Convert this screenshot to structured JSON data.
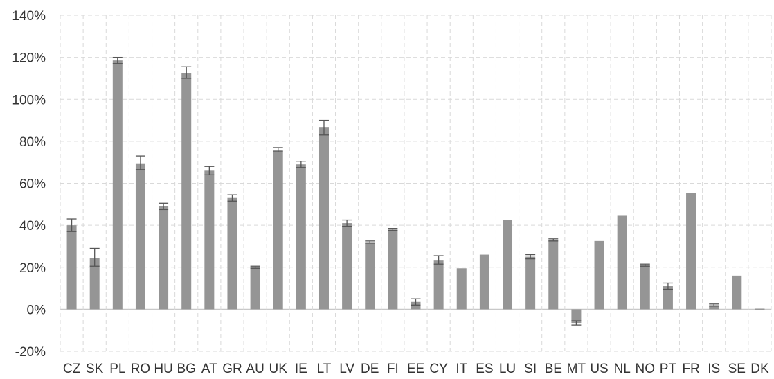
{
  "chart_data": {
    "type": "bar",
    "title": "",
    "xlabel": "",
    "ylabel": "",
    "ylim": [
      -20,
      140
    ],
    "yticks": [
      -20,
      0,
      20,
      40,
      60,
      80,
      100,
      120,
      140
    ],
    "ytick_labels": [
      "-20%",
      "0%",
      "20%",
      "40%",
      "60%",
      "80%",
      "100%",
      "120%",
      "140%"
    ],
    "grid": true,
    "legend": "none",
    "bar_color": "#959595",
    "categories": [
      "CZ",
      "SK",
      "PL",
      "RO",
      "HU",
      "BG",
      "AT",
      "GR",
      "AU",
      "UK",
      "IE",
      "LT",
      "LV",
      "DE",
      "FI",
      "EE",
      "CY",
      "IT",
      "ES",
      "LU",
      "SI",
      "BE",
      "MT",
      "US",
      "NL",
      "NO",
      "PT",
      "FR",
      "IS",
      "SE",
      "DK"
    ],
    "values": [
      40,
      24.5,
      118.5,
      69.5,
      49,
      112.5,
      66,
      53,
      20,
      76,
      69,
      86.5,
      41,
      32,
      38,
      3.5,
      23.5,
      19.5,
      26,
      42.5,
      25,
      33,
      -6.5,
      32.5,
      44.5,
      21,
      11,
      55.5,
      2,
      16,
      0.3
    ],
    "err_high": [
      43,
      29,
      120,
      73,
      50.5,
      115.5,
      68,
      54.5,
      20.5,
      77,
      70.5,
      90,
      42.5,
      32.5,
      38.5,
      5,
      25.5,
      19.5,
      26,
      42.5,
      26,
      33.5,
      -5.5,
      32.5,
      44.5,
      21.5,
      12.5,
      55.5,
      2.5,
      16,
      0.3
    ],
    "err_low": [
      37,
      20.5,
      117,
      66.5,
      47.5,
      110,
      64,
      51.5,
      19.5,
      75,
      67.5,
      83,
      39.5,
      31.5,
      37.5,
      2,
      21.5,
      19.5,
      26,
      42.5,
      24,
      32.5,
      -7.5,
      32.5,
      44.5,
      20.5,
      9.5,
      55.5,
      1.5,
      16,
      0.3
    ]
  }
}
